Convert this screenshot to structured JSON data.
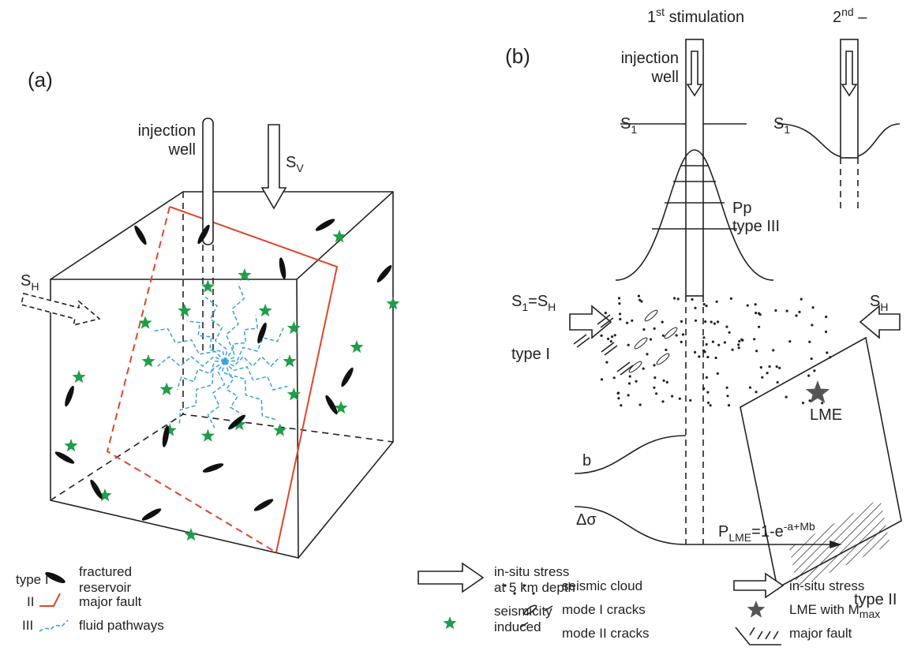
{
  "panel_a": {
    "label": "(a)",
    "well": [
      "injection",
      "well"
    ],
    "sv": [
      "S",
      "V"
    ],
    "sh": [
      "S",
      "H"
    ],
    "legend": [
      {
        "key": "type I",
        "text": [
          "fractured",
          "reservoir"
        ]
      },
      {
        "key": "II",
        "text": [
          "major fault"
        ]
      },
      {
        "key": "III",
        "text": [
          "fluid pathways"
        ]
      },
      {
        "text": [
          "in-situ stress",
          "at 5 km depth"
        ]
      },
      {
        "text": [
          "seismicity",
          "induced"
        ]
      }
    ]
  },
  "panel_b": {
    "label": "(b)",
    "first": [
      "1",
      "st",
      " stimulation"
    ],
    "second": [
      "2",
      "nd",
      " –"
    ],
    "well": [
      "injection",
      "well"
    ],
    "s1_left": [
      "S",
      "1"
    ],
    "s1_right": [
      "S",
      "1"
    ],
    "pp": [
      "Pp",
      "type III"
    ],
    "s1_sh": [
      "S",
      "1",
      "=S",
      "H"
    ],
    "type_i": "type I",
    "sh": [
      "S",
      "H"
    ],
    "lme": "LME",
    "type_ii": "type II",
    "b": "b",
    "dsigma": "Δσ",
    "p_lme": [
      "P",
      "LME",
      "=1-e",
      "-a+Mb"
    ],
    "legend": [
      {
        "text": [
          "seismic cloud"
        ]
      },
      {
        "text": [
          "mode I cracks"
        ]
      },
      {
        "text": [
          "mode II cracks"
        ]
      },
      {
        "text": [
          "in-situ stress"
        ]
      },
      {
        "text": [
          "LME with M",
          "max"
        ]
      },
      {
        "text": [
          "major fault"
        ]
      }
    ]
  }
}
